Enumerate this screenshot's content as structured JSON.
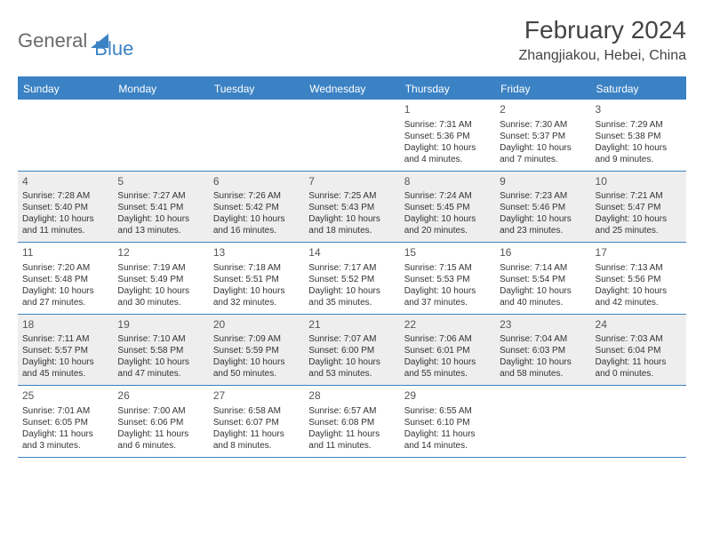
{
  "brand": {
    "part1": "General",
    "part2": "Blue"
  },
  "title": "February 2024",
  "location": "Zhangjiakou, Hebei, China",
  "colors": {
    "accent": "#3b82c4",
    "alt_row_bg": "#eeeeee",
    "text": "#333333",
    "muted": "#6a6a6a",
    "background": "#ffffff"
  },
  "day_headers": [
    "Sunday",
    "Monday",
    "Tuesday",
    "Wednesday",
    "Thursday",
    "Friday",
    "Saturday"
  ],
  "weeks": [
    {
      "alt": false,
      "days": [
        null,
        null,
        null,
        null,
        {
          "n": "1",
          "sr": "Sunrise: 7:31 AM",
          "ss": "Sunset: 5:36 PM",
          "d1": "Daylight: 10 hours",
          "d2": "and 4 minutes."
        },
        {
          "n": "2",
          "sr": "Sunrise: 7:30 AM",
          "ss": "Sunset: 5:37 PM",
          "d1": "Daylight: 10 hours",
          "d2": "and 7 minutes."
        },
        {
          "n": "3",
          "sr": "Sunrise: 7:29 AM",
          "ss": "Sunset: 5:38 PM",
          "d1": "Daylight: 10 hours",
          "d2": "and 9 minutes."
        }
      ]
    },
    {
      "alt": true,
      "days": [
        {
          "n": "4",
          "sr": "Sunrise: 7:28 AM",
          "ss": "Sunset: 5:40 PM",
          "d1": "Daylight: 10 hours",
          "d2": "and 11 minutes."
        },
        {
          "n": "5",
          "sr": "Sunrise: 7:27 AM",
          "ss": "Sunset: 5:41 PM",
          "d1": "Daylight: 10 hours",
          "d2": "and 13 minutes."
        },
        {
          "n": "6",
          "sr": "Sunrise: 7:26 AM",
          "ss": "Sunset: 5:42 PM",
          "d1": "Daylight: 10 hours",
          "d2": "and 16 minutes."
        },
        {
          "n": "7",
          "sr": "Sunrise: 7:25 AM",
          "ss": "Sunset: 5:43 PM",
          "d1": "Daylight: 10 hours",
          "d2": "and 18 minutes."
        },
        {
          "n": "8",
          "sr": "Sunrise: 7:24 AM",
          "ss": "Sunset: 5:45 PM",
          "d1": "Daylight: 10 hours",
          "d2": "and 20 minutes."
        },
        {
          "n": "9",
          "sr": "Sunrise: 7:23 AM",
          "ss": "Sunset: 5:46 PM",
          "d1": "Daylight: 10 hours",
          "d2": "and 23 minutes."
        },
        {
          "n": "10",
          "sr": "Sunrise: 7:21 AM",
          "ss": "Sunset: 5:47 PM",
          "d1": "Daylight: 10 hours",
          "d2": "and 25 minutes."
        }
      ]
    },
    {
      "alt": false,
      "days": [
        {
          "n": "11",
          "sr": "Sunrise: 7:20 AM",
          "ss": "Sunset: 5:48 PM",
          "d1": "Daylight: 10 hours",
          "d2": "and 27 minutes."
        },
        {
          "n": "12",
          "sr": "Sunrise: 7:19 AM",
          "ss": "Sunset: 5:49 PM",
          "d1": "Daylight: 10 hours",
          "d2": "and 30 minutes."
        },
        {
          "n": "13",
          "sr": "Sunrise: 7:18 AM",
          "ss": "Sunset: 5:51 PM",
          "d1": "Daylight: 10 hours",
          "d2": "and 32 minutes."
        },
        {
          "n": "14",
          "sr": "Sunrise: 7:17 AM",
          "ss": "Sunset: 5:52 PM",
          "d1": "Daylight: 10 hours",
          "d2": "and 35 minutes."
        },
        {
          "n": "15",
          "sr": "Sunrise: 7:15 AM",
          "ss": "Sunset: 5:53 PM",
          "d1": "Daylight: 10 hours",
          "d2": "and 37 minutes."
        },
        {
          "n": "16",
          "sr": "Sunrise: 7:14 AM",
          "ss": "Sunset: 5:54 PM",
          "d1": "Daylight: 10 hours",
          "d2": "and 40 minutes."
        },
        {
          "n": "17",
          "sr": "Sunrise: 7:13 AM",
          "ss": "Sunset: 5:56 PM",
          "d1": "Daylight: 10 hours",
          "d2": "and 42 minutes."
        }
      ]
    },
    {
      "alt": true,
      "days": [
        {
          "n": "18",
          "sr": "Sunrise: 7:11 AM",
          "ss": "Sunset: 5:57 PM",
          "d1": "Daylight: 10 hours",
          "d2": "and 45 minutes."
        },
        {
          "n": "19",
          "sr": "Sunrise: 7:10 AM",
          "ss": "Sunset: 5:58 PM",
          "d1": "Daylight: 10 hours",
          "d2": "and 47 minutes."
        },
        {
          "n": "20",
          "sr": "Sunrise: 7:09 AM",
          "ss": "Sunset: 5:59 PM",
          "d1": "Daylight: 10 hours",
          "d2": "and 50 minutes."
        },
        {
          "n": "21",
          "sr": "Sunrise: 7:07 AM",
          "ss": "Sunset: 6:00 PM",
          "d1": "Daylight: 10 hours",
          "d2": "and 53 minutes."
        },
        {
          "n": "22",
          "sr": "Sunrise: 7:06 AM",
          "ss": "Sunset: 6:01 PM",
          "d1": "Daylight: 10 hours",
          "d2": "and 55 minutes."
        },
        {
          "n": "23",
          "sr": "Sunrise: 7:04 AM",
          "ss": "Sunset: 6:03 PM",
          "d1": "Daylight: 10 hours",
          "d2": "and 58 minutes."
        },
        {
          "n": "24",
          "sr": "Sunrise: 7:03 AM",
          "ss": "Sunset: 6:04 PM",
          "d1": "Daylight: 11 hours",
          "d2": "and 0 minutes."
        }
      ]
    },
    {
      "alt": false,
      "days": [
        {
          "n": "25",
          "sr": "Sunrise: 7:01 AM",
          "ss": "Sunset: 6:05 PM",
          "d1": "Daylight: 11 hours",
          "d2": "and 3 minutes."
        },
        {
          "n": "26",
          "sr": "Sunrise: 7:00 AM",
          "ss": "Sunset: 6:06 PM",
          "d1": "Daylight: 11 hours",
          "d2": "and 6 minutes."
        },
        {
          "n": "27",
          "sr": "Sunrise: 6:58 AM",
          "ss": "Sunset: 6:07 PM",
          "d1": "Daylight: 11 hours",
          "d2": "and 8 minutes."
        },
        {
          "n": "28",
          "sr": "Sunrise: 6:57 AM",
          "ss": "Sunset: 6:08 PM",
          "d1": "Daylight: 11 hours",
          "d2": "and 11 minutes."
        },
        {
          "n": "29",
          "sr": "Sunrise: 6:55 AM",
          "ss": "Sunset: 6:10 PM",
          "d1": "Daylight: 11 hours",
          "d2": "and 14 minutes."
        },
        null,
        null
      ]
    }
  ]
}
